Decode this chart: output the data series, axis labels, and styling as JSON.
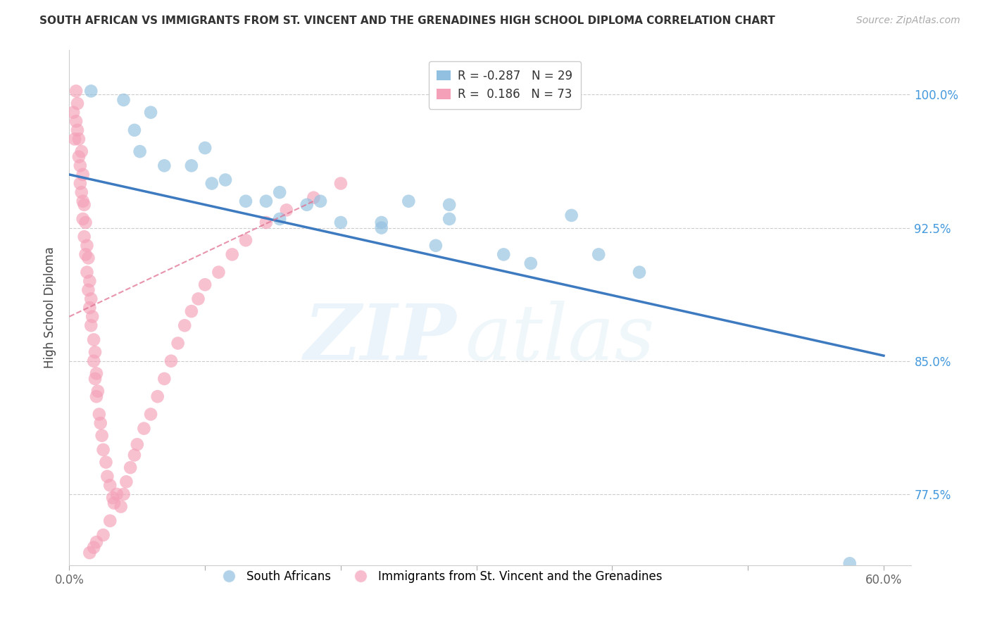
{
  "title": "SOUTH AFRICAN VS IMMIGRANTS FROM ST. VINCENT AND THE GRENADINES HIGH SCHOOL DIPLOMA CORRELATION CHART",
  "source": "Source: ZipAtlas.com",
  "ylabel": "High School Diploma",
  "xlim": [
    0.0,
    0.62
  ],
  "ylim": [
    0.735,
    1.025
  ],
  "yticks": [
    0.775,
    0.85,
    0.925,
    1.0
  ],
  "ytick_labels": [
    "77.5%",
    "85.0%",
    "92.5%",
    "100.0%"
  ],
  "watermark_zip": "ZIP",
  "watermark_atlas": "atlas",
  "blue_color": "#92c0e0",
  "pink_color": "#f4a0b8",
  "trend_blue_color": "#3d7abf",
  "trend_pink_color": "#e07090",
  "blue_scatter_x": [
    0.016,
    0.04,
    0.048,
    0.06,
    0.052,
    0.07,
    0.1,
    0.09,
    0.105,
    0.115,
    0.13,
    0.145,
    0.155,
    0.175,
    0.2,
    0.23,
    0.25,
    0.27,
    0.28,
    0.23,
    0.185,
    0.155,
    0.32,
    0.28,
    0.34,
    0.37,
    0.39,
    0.42,
    0.575
  ],
  "blue_scatter_y": [
    1.002,
    0.997,
    0.98,
    0.99,
    0.968,
    0.96,
    0.97,
    0.96,
    0.95,
    0.952,
    0.94,
    0.94,
    0.93,
    0.938,
    0.928,
    0.928,
    0.94,
    0.915,
    0.938,
    0.925,
    0.94,
    0.945,
    0.91,
    0.93,
    0.905,
    0.932,
    0.91,
    0.9,
    0.736
  ],
  "pink_scatter_x": [
    0.003,
    0.004,
    0.005,
    0.006,
    0.005,
    0.006,
    0.007,
    0.007,
    0.008,
    0.008,
    0.009,
    0.009,
    0.01,
    0.01,
    0.01,
    0.011,
    0.011,
    0.012,
    0.012,
    0.013,
    0.013,
    0.014,
    0.014,
    0.015,
    0.015,
    0.016,
    0.016,
    0.017,
    0.018,
    0.018,
    0.019,
    0.019,
    0.02,
    0.02,
    0.021,
    0.022,
    0.023,
    0.024,
    0.025,
    0.027,
    0.028,
    0.03,
    0.032,
    0.033,
    0.035,
    0.038,
    0.04,
    0.042,
    0.045,
    0.048,
    0.05,
    0.055,
    0.06,
    0.065,
    0.07,
    0.075,
    0.08,
    0.085,
    0.09,
    0.095,
    0.1,
    0.11,
    0.12,
    0.13,
    0.145,
    0.16,
    0.18,
    0.2,
    0.03,
    0.025,
    0.02,
    0.018,
    0.015
  ],
  "pink_scatter_y": [
    0.99,
    0.975,
    1.002,
    0.995,
    0.985,
    0.98,
    0.975,
    0.965,
    0.96,
    0.95,
    0.968,
    0.945,
    0.955,
    0.94,
    0.93,
    0.938,
    0.92,
    0.928,
    0.91,
    0.915,
    0.9,
    0.908,
    0.89,
    0.895,
    0.88,
    0.885,
    0.87,
    0.875,
    0.862,
    0.85,
    0.855,
    0.84,
    0.843,
    0.83,
    0.833,
    0.82,
    0.815,
    0.808,
    0.8,
    0.793,
    0.785,
    0.78,
    0.773,
    0.77,
    0.775,
    0.768,
    0.775,
    0.782,
    0.79,
    0.797,
    0.803,
    0.812,
    0.82,
    0.83,
    0.84,
    0.85,
    0.86,
    0.87,
    0.878,
    0.885,
    0.893,
    0.9,
    0.91,
    0.918,
    0.928,
    0.935,
    0.942,
    0.95,
    0.76,
    0.752,
    0.748,
    0.745,
    0.742
  ],
  "blue_trend_x": [
    0.0,
    0.6
  ],
  "blue_trend_y": [
    0.955,
    0.853
  ],
  "pink_trend_x": [
    0.0,
    0.18
  ],
  "pink_trend_y": [
    0.875,
    0.94
  ],
  "legend_blue_label": "R = -0.287   N = 29",
  "legend_pink_label": "R =  0.186   N = 73",
  "bottom_legend_blue": "South Africans",
  "bottom_legend_pink": "Immigrants from St. Vincent and the Grenadines"
}
